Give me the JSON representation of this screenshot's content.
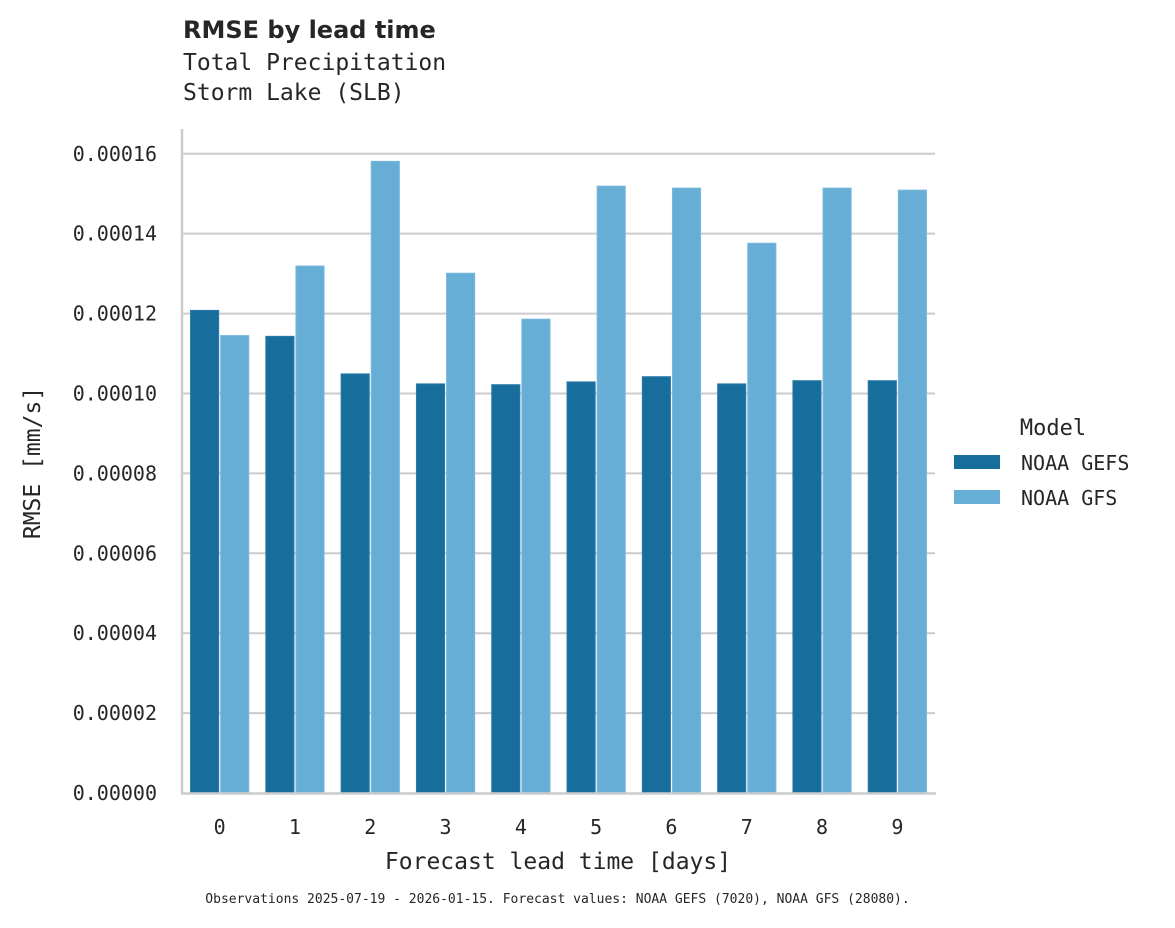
{
  "header": {
    "title": "RMSE by lead time",
    "subtitle_line1": "Total Precipitation",
    "subtitle_line2": "Storm Lake (SLB)"
  },
  "footnote": "Observations 2025-07-19 - 2026-01-15. Forecast values: NOAA GEFS (7020), NOAA GFS (28080).",
  "colors": {
    "NOAA GEFS": "#176d9c",
    "NOAA GFS": "#67aed6",
    "grid": "#cccccc",
    "spine": "#cccccc",
    "text": "#262626"
  },
  "chart_data": {
    "type": "bar",
    "title": "RMSE by lead time",
    "subtitle": [
      "Total Precipitation",
      "Storm Lake (SLB)"
    ],
    "xlabel": "Forecast lead time [days]",
    "ylabel": "RMSE [mm/s]",
    "categories": [
      "0",
      "1",
      "2",
      "3",
      "4",
      "5",
      "6",
      "7",
      "8",
      "9"
    ],
    "series": [
      {
        "name": "NOAA GEFS",
        "color": "#176d9c",
        "values": [
          0.0001208,
          0.0001143,
          0.0001049,
          0.0001024,
          0.0001022,
          0.0001029,
          0.0001042,
          0.0001024,
          0.0001032,
          0.0001032
        ]
      },
      {
        "name": "NOAA GFS",
        "color": "#67aed6",
        "values": [
          0.0001145,
          0.0001319,
          0.0001581,
          0.0001301,
          0.0001186,
          0.0001519,
          0.0001514,
          0.0001376,
          0.0001514,
          0.0001509
        ]
      }
    ],
    "ylim": [
      0,
      0.0001662
    ],
    "yticks": [
      0,
      2e-05,
      4e-05,
      6e-05,
      8e-05,
      0.0001,
      0.00012,
      0.00014,
      0.00016
    ],
    "ytick_labels": [
      "0.00000",
      "0.00002",
      "0.00004",
      "0.00006",
      "0.00008",
      "0.00010",
      "0.00012",
      "0.00014",
      "0.00016"
    ],
    "grid": "horizontal",
    "legend": {
      "title": "Model",
      "position": "right",
      "entries": [
        "NOAA GEFS",
        "NOAA GFS"
      ]
    }
  }
}
